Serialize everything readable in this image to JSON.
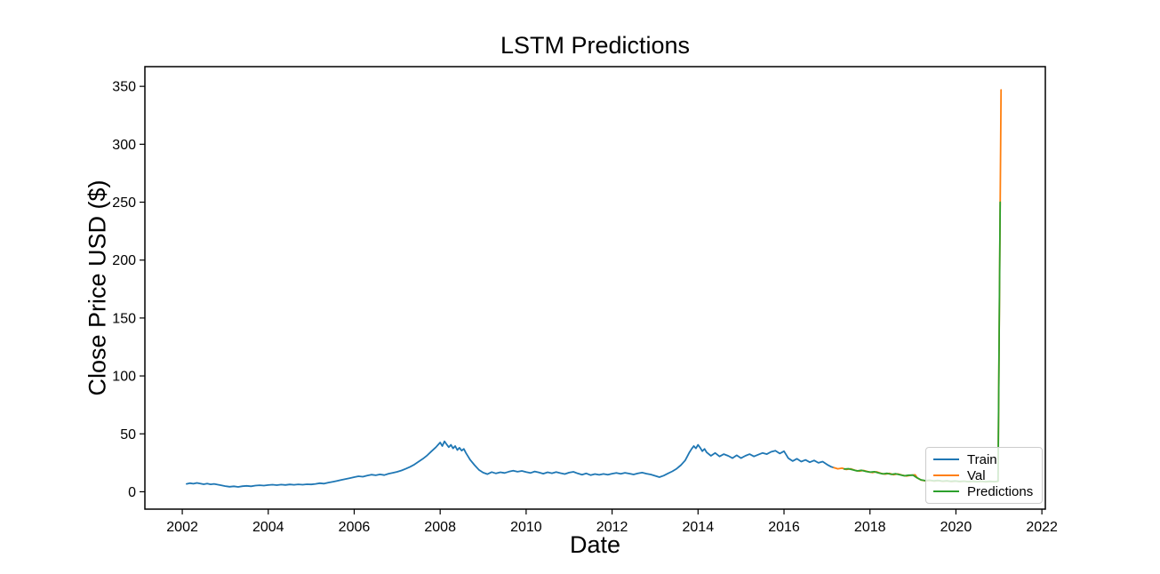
{
  "chart_data": {
    "type": "line",
    "title": "LSTM Predictions",
    "xlabel": "Date",
    "ylabel": "Close Price USD ($)",
    "xlim": [
      2001.13,
      2022.08
    ],
    "ylim": [
      -15,
      367
    ],
    "xticks": [
      2002,
      2004,
      2006,
      2008,
      2010,
      2012,
      2014,
      2016,
      2018,
      2020,
      2022
    ],
    "yticks": [
      0,
      50,
      100,
      150,
      200,
      250,
      300,
      350
    ],
    "grid": false,
    "legend": {
      "position": "lower right"
    },
    "series": [
      {
        "name": "Train",
        "color": "#1f77b4",
        "points": [
          [
            2002.1,
            6.8
          ],
          [
            2002.18,
            7.4
          ],
          [
            2002.26,
            6.9
          ],
          [
            2002.34,
            7.6
          ],
          [
            2002.42,
            7.1
          ],
          [
            2002.5,
            6.5
          ],
          [
            2002.58,
            7.0
          ],
          [
            2002.66,
            6.4
          ],
          [
            2002.74,
            6.8
          ],
          [
            2002.82,
            6.2
          ],
          [
            2002.9,
            5.6
          ],
          [
            2003.0,
            4.9
          ],
          [
            2003.1,
            4.3
          ],
          [
            2003.2,
            4.7
          ],
          [
            2003.3,
            4.2
          ],
          [
            2003.4,
            4.8
          ],
          [
            2003.5,
            5.1
          ],
          [
            2003.6,
            4.7
          ],
          [
            2003.7,
            5.3
          ],
          [
            2003.8,
            5.6
          ],
          [
            2003.9,
            5.3
          ],
          [
            2004.0,
            5.8
          ],
          [
            2004.1,
            6.1
          ],
          [
            2004.2,
            5.7
          ],
          [
            2004.3,
            6.2
          ],
          [
            2004.4,
            5.9
          ],
          [
            2004.5,
            6.3
          ],
          [
            2004.6,
            6.0
          ],
          [
            2004.7,
            6.4
          ],
          [
            2004.8,
            6.1
          ],
          [
            2004.9,
            6.5
          ],
          [
            2005.0,
            6.3
          ],
          [
            2005.1,
            6.8
          ],
          [
            2005.2,
            7.4
          ],
          [
            2005.3,
            7.0
          ],
          [
            2005.4,
            7.9
          ],
          [
            2005.5,
            8.6
          ],
          [
            2005.6,
            9.4
          ],
          [
            2005.7,
            10.2
          ],
          [
            2005.8,
            11.0
          ],
          [
            2005.9,
            11.8
          ],
          [
            2006.0,
            12.6
          ],
          [
            2006.1,
            13.4
          ],
          [
            2006.2,
            13.0
          ],
          [
            2006.3,
            14.0
          ],
          [
            2006.4,
            14.8
          ],
          [
            2006.5,
            14.2
          ],
          [
            2006.6,
            15.0
          ],
          [
            2006.7,
            14.4
          ],
          [
            2006.8,
            15.6
          ],
          [
            2006.9,
            16.4
          ],
          [
            2007.0,
            17.2
          ],
          [
            2007.1,
            18.4
          ],
          [
            2007.2,
            19.8
          ],
          [
            2007.3,
            21.5
          ],
          [
            2007.4,
            23.5
          ],
          [
            2007.5,
            26.0
          ],
          [
            2007.6,
            28.5
          ],
          [
            2007.7,
            31.5
          ],
          [
            2007.8,
            35.0
          ],
          [
            2007.9,
            38.5
          ],
          [
            2007.95,
            40.5
          ],
          [
            2008.0,
            42.5
          ],
          [
            2008.05,
            39.5
          ],
          [
            2008.1,
            43.5
          ],
          [
            2008.15,
            41.0
          ],
          [
            2008.2,
            38.5
          ],
          [
            2008.25,
            40.5
          ],
          [
            2008.3,
            37.5
          ],
          [
            2008.35,
            39.5
          ],
          [
            2008.4,
            36.0
          ],
          [
            2008.45,
            38.0
          ],
          [
            2008.5,
            35.5
          ],
          [
            2008.55,
            37.0
          ],
          [
            2008.6,
            33.5
          ],
          [
            2008.65,
            30.5
          ],
          [
            2008.7,
            27.5
          ],
          [
            2008.8,
            23.0
          ],
          [
            2008.9,
            19.0
          ],
          [
            2009.0,
            16.5
          ],
          [
            2009.1,
            15.2
          ],
          [
            2009.2,
            17.0
          ],
          [
            2009.3,
            15.8
          ],
          [
            2009.4,
            16.8
          ],
          [
            2009.5,
            16.2
          ],
          [
            2009.6,
            17.4
          ],
          [
            2009.7,
            18.2
          ],
          [
            2009.8,
            17.3
          ],
          [
            2009.9,
            18.0
          ],
          [
            2010.0,
            17.0
          ],
          [
            2010.1,
            16.2
          ],
          [
            2010.2,
            17.5
          ],
          [
            2010.3,
            16.6
          ],
          [
            2010.4,
            15.6
          ],
          [
            2010.5,
            16.8
          ],
          [
            2010.6,
            16.0
          ],
          [
            2010.7,
            17.0
          ],
          [
            2010.8,
            16.1
          ],
          [
            2010.9,
            15.3
          ],
          [
            2011.0,
            16.5
          ],
          [
            2011.1,
            17.2
          ],
          [
            2011.2,
            15.8
          ],
          [
            2011.3,
            14.8
          ],
          [
            2011.4,
            15.8
          ],
          [
            2011.5,
            14.4
          ],
          [
            2011.6,
            15.3
          ],
          [
            2011.7,
            14.6
          ],
          [
            2011.8,
            15.4
          ],
          [
            2011.9,
            14.7
          ],
          [
            2012.0,
            15.6
          ],
          [
            2012.1,
            16.3
          ],
          [
            2012.2,
            15.5
          ],
          [
            2012.3,
            16.4
          ],
          [
            2012.4,
            15.7
          ],
          [
            2012.5,
            14.9
          ],
          [
            2012.6,
            15.8
          ],
          [
            2012.7,
            16.5
          ],
          [
            2012.8,
            15.6
          ],
          [
            2012.9,
            14.9
          ],
          [
            2013.0,
            13.8
          ],
          [
            2013.1,
            12.6
          ],
          [
            2013.2,
            13.9
          ],
          [
            2013.3,
            15.8
          ],
          [
            2013.4,
            17.6
          ],
          [
            2013.5,
            19.8
          ],
          [
            2013.6,
            23.0
          ],
          [
            2013.7,
            27.0
          ],
          [
            2013.75,
            30.5
          ],
          [
            2013.8,
            34.0
          ],
          [
            2013.85,
            37.0
          ],
          [
            2013.9,
            39.5
          ],
          [
            2013.95,
            37.5
          ],
          [
            2014.0,
            40.5
          ],
          [
            2014.05,
            38.0
          ],
          [
            2014.1,
            35.0
          ],
          [
            2014.15,
            37.0
          ],
          [
            2014.2,
            34.0
          ],
          [
            2014.3,
            31.0
          ],
          [
            2014.4,
            33.5
          ],
          [
            2014.5,
            30.5
          ],
          [
            2014.6,
            32.5
          ],
          [
            2014.7,
            31.0
          ],
          [
            2014.8,
            29.0
          ],
          [
            2014.9,
            31.5
          ],
          [
            2015.0,
            29.0
          ],
          [
            2015.1,
            31.0
          ],
          [
            2015.2,
            32.5
          ],
          [
            2015.3,
            30.5
          ],
          [
            2015.4,
            32.0
          ],
          [
            2015.5,
            33.5
          ],
          [
            2015.6,
            32.5
          ],
          [
            2015.7,
            34.5
          ],
          [
            2015.8,
            35.5
          ],
          [
            2015.9,
            33.0
          ],
          [
            2016.0,
            35.0
          ],
          [
            2016.05,
            32.0
          ],
          [
            2016.1,
            29.0
          ],
          [
            2016.2,
            26.5
          ],
          [
            2016.3,
            28.5
          ],
          [
            2016.4,
            26.0
          ],
          [
            2016.5,
            27.5
          ],
          [
            2016.6,
            25.5
          ],
          [
            2016.7,
            27.0
          ],
          [
            2016.8,
            25.0
          ],
          [
            2016.9,
            26.0
          ],
          [
            2017.0,
            23.5
          ],
          [
            2017.1,
            21.5
          ],
          [
            2017.16,
            20.8
          ]
        ]
      },
      {
        "name": "Val",
        "color": "#ff7f0e",
        "points": [
          [
            2017.16,
            20.8
          ],
          [
            2017.25,
            19.8
          ],
          [
            2017.35,
            20.4
          ],
          [
            2017.45,
            19.2
          ],
          [
            2017.55,
            19.8
          ],
          [
            2017.65,
            18.6
          ],
          [
            2017.75,
            17.8
          ],
          [
            2017.85,
            18.4
          ],
          [
            2017.95,
            17.4
          ],
          [
            2018.05,
            16.6
          ],
          [
            2018.15,
            17.2
          ],
          [
            2018.25,
            16.0
          ],
          [
            2018.35,
            15.2
          ],
          [
            2018.45,
            15.8
          ],
          [
            2018.55,
            14.8
          ],
          [
            2018.65,
            15.4
          ],
          [
            2018.75,
            14.4
          ],
          [
            2018.85,
            13.6
          ],
          [
            2018.95,
            14.2
          ],
          [
            2019.05,
            14.6
          ],
          [
            2019.1,
            12.0
          ],
          [
            2019.2,
            10.0
          ],
          [
            2019.3,
            9.4
          ],
          [
            2019.4,
            9.8
          ],
          [
            2019.5,
            9.2
          ],
          [
            2019.6,
            9.6
          ],
          [
            2019.7,
            9.0
          ],
          [
            2019.8,
            9.4
          ],
          [
            2019.9,
            8.8
          ],
          [
            2020.0,
            9.2
          ],
          [
            2020.1,
            8.7
          ],
          [
            2020.2,
            9.1
          ],
          [
            2020.3,
            8.6
          ],
          [
            2020.4,
            9.0
          ],
          [
            2020.5,
            8.6
          ],
          [
            2020.6,
            9.0
          ],
          [
            2020.7,
            8.5
          ],
          [
            2020.8,
            8.9
          ],
          [
            2020.9,
            8.6
          ],
          [
            2020.98,
            9.0
          ],
          [
            2021.05,
            347
          ]
        ]
      },
      {
        "name": "Predictions",
        "color": "#2ca02c",
        "points": [
          [
            2017.4,
            19.6
          ],
          [
            2017.5,
            19.9
          ],
          [
            2017.6,
            18.9
          ],
          [
            2017.7,
            18.0
          ],
          [
            2017.8,
            18.5
          ],
          [
            2017.9,
            17.6
          ],
          [
            2018.0,
            16.9
          ],
          [
            2018.1,
            17.3
          ],
          [
            2018.2,
            16.2
          ],
          [
            2018.3,
            15.4
          ],
          [
            2018.4,
            15.9
          ],
          [
            2018.5,
            15.0
          ],
          [
            2018.6,
            15.5
          ],
          [
            2018.7,
            14.6
          ],
          [
            2018.8,
            13.8
          ],
          [
            2018.9,
            14.3
          ],
          [
            2019.0,
            14.4
          ],
          [
            2019.08,
            12.4
          ],
          [
            2019.18,
            10.3
          ],
          [
            2019.28,
            9.6
          ],
          [
            2019.38,
            10.0
          ],
          [
            2019.48,
            9.4
          ],
          [
            2019.58,
            9.8
          ],
          [
            2019.68,
            9.2
          ],
          [
            2019.78,
            9.5
          ],
          [
            2019.88,
            9.0
          ],
          [
            2019.98,
            9.3
          ],
          [
            2020.08,
            8.9
          ],
          [
            2020.18,
            9.2
          ],
          [
            2020.28,
            8.8
          ],
          [
            2020.38,
            9.1
          ],
          [
            2020.48,
            8.7
          ],
          [
            2020.58,
            9.1
          ],
          [
            2020.68,
            8.7
          ],
          [
            2020.78,
            9.0
          ],
          [
            2020.88,
            8.7
          ],
          [
            2020.98,
            9.1
          ],
          [
            2021.03,
            250
          ]
        ]
      }
    ]
  },
  "legend": {
    "items": [
      {
        "label": "Train",
        "color": "#1f77b4"
      },
      {
        "label": "Val",
        "color": "#ff7f0e"
      },
      {
        "label": "Predictions",
        "color": "#2ca02c"
      }
    ]
  }
}
